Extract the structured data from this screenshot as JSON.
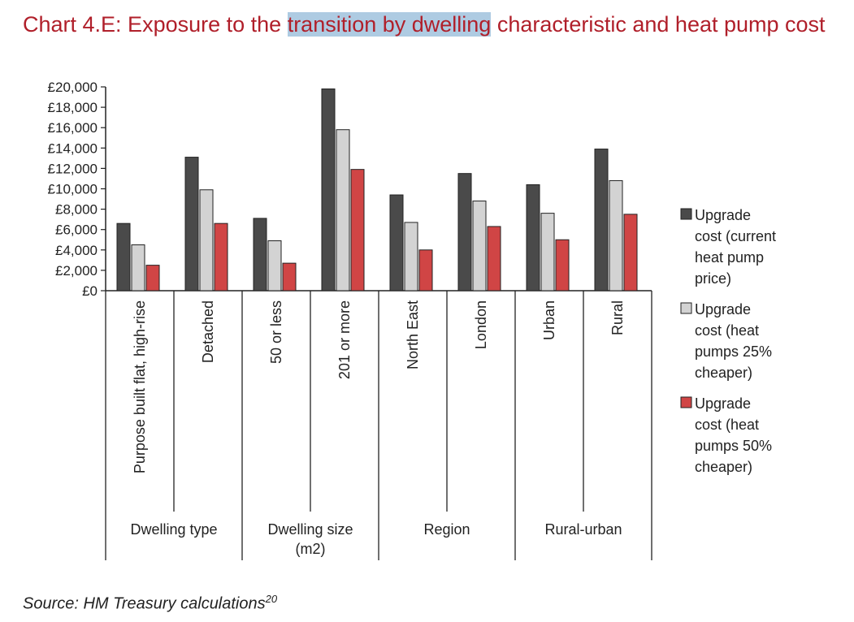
{
  "title": {
    "before": "Chart 4.E: Exposure to the ",
    "highlight": "transition by dwelling",
    "after": " characteristic and heat pump cost"
  },
  "source": {
    "text": "Source: HM Treasury calculations",
    "superscript": "20"
  },
  "colors": {
    "title": "#b01f2a",
    "highlight": "#aecbe2",
    "series": [
      "#4a4a4a",
      "#d3d3d3",
      "#d04545"
    ]
  },
  "chart_data": {
    "type": "bar",
    "categories": [
      "Purpose built flat, high-rise",
      "Detached",
      "50 or less",
      "201 or more",
      "North East",
      "London",
      "Urban",
      "Rural"
    ],
    "groups": [
      {
        "label": "Dwelling type",
        "categories": [
          "Purpose built flat, high-rise",
          "Detached"
        ]
      },
      {
        "label": "Dwelling size (m2)",
        "categories": [
          "50 or less",
          "201 or more"
        ]
      },
      {
        "label": "Region",
        "categories": [
          "North East",
          "London"
        ]
      },
      {
        "label": "Rural-urban",
        "categories": [
          "Urban",
          "Rural"
        ]
      }
    ],
    "series": [
      {
        "name": "Upgrade cost (current heat pump price)",
        "values": [
          6600,
          13100,
          7100,
          19800,
          9400,
          11500,
          10400,
          13900
        ]
      },
      {
        "name": "Upgrade cost (heat pumps 25% cheaper)",
        "values": [
          4500,
          9900,
          4900,
          15800,
          6700,
          8800,
          7600,
          10800
        ]
      },
      {
        "name": "Upgrade cost (heat pumps 50% cheaper)",
        "values": [
          2500,
          6600,
          2700,
          11900,
          4000,
          6300,
          5000,
          7500
        ]
      }
    ],
    "yticks": [
      "£0",
      "£2,000",
      "£4,000",
      "£6,000",
      "£8,000",
      "£10,000",
      "£12,000",
      "£14,000",
      "£16,000",
      "£18,000",
      "£20,000"
    ],
    "ylim": [
      0,
      20000
    ],
    "legend_position": "right",
    "grid": false
  }
}
